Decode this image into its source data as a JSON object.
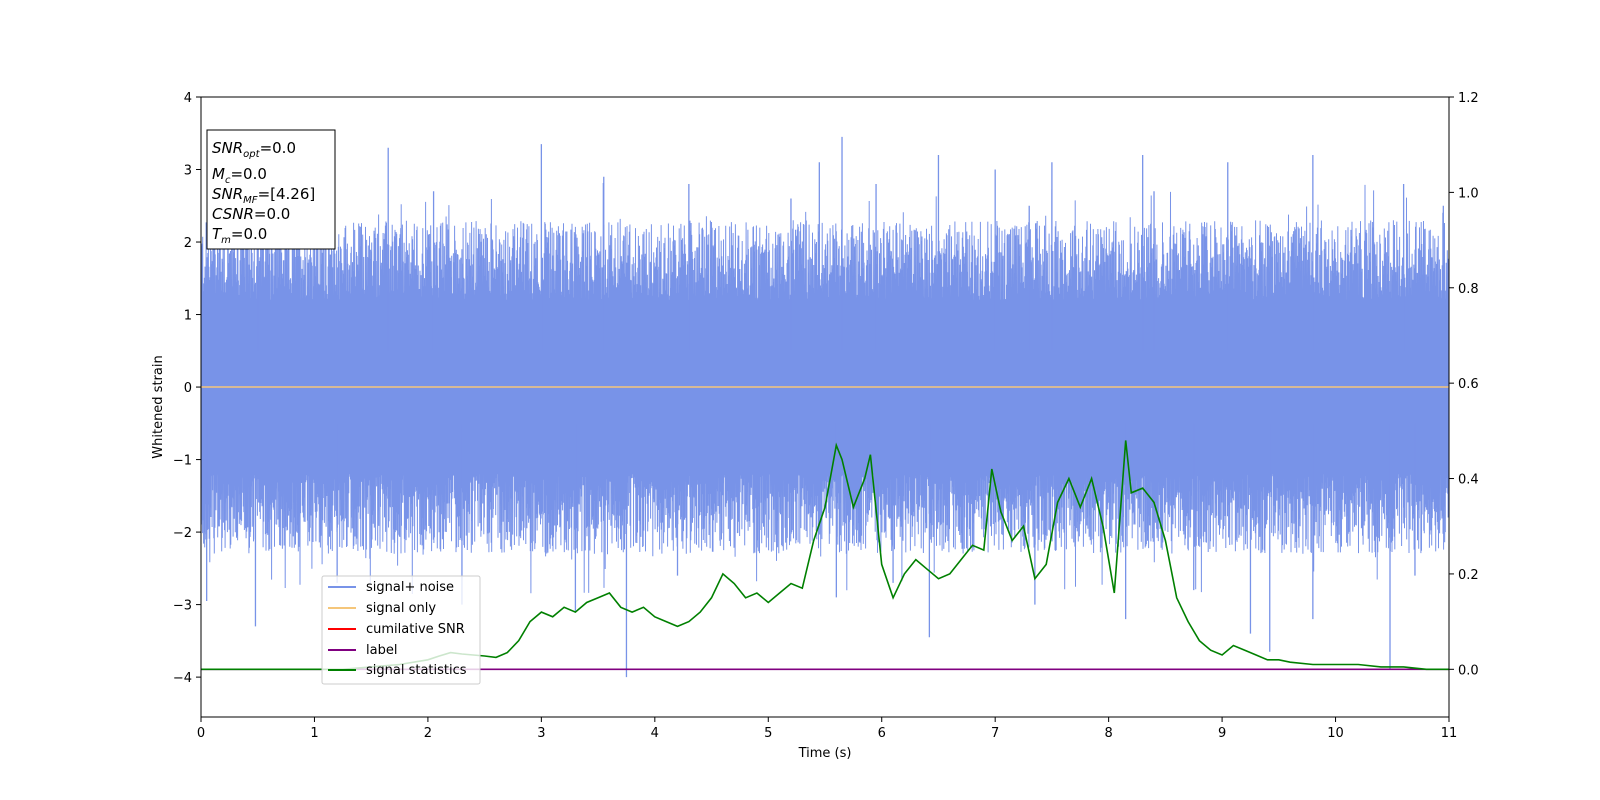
{
  "chart_data": {
    "type": "line",
    "xlabel": "Time (s)",
    "ylabel": "Whitened strain",
    "xlim": [
      0,
      11
    ],
    "ylim": [
      -4.55,
      4.0
    ],
    "y2lim": [
      -0.1,
      1.2
    ],
    "xticks": [
      "0",
      "1",
      "2",
      "3",
      "4",
      "5",
      "6",
      "7",
      "8",
      "9",
      "10",
      "11"
    ],
    "yticks": [
      "4",
      "3",
      "2",
      "1",
      "0",
      "−1",
      "−2",
      "−3",
      "−4"
    ],
    "y2ticks": [
      "1.2",
      "1.0",
      "0.8",
      "0.6",
      "0.4",
      "0.2",
      "0.0"
    ],
    "grid": false,
    "legend_location": "lower-left",
    "legend": [
      "signal+ noise",
      "signal only",
      "cumilative SNR",
      "label",
      "signal statistics"
    ],
    "colors": {
      "signal_noise": "#7893e8",
      "signal_only": "#f5c67a",
      "cumulative_snr": "#ff0000",
      "label": "#800080",
      "signal_statistics": "#008000"
    },
    "series": [
      {
        "name": "signal+ noise",
        "axis": "left",
        "description_range": [
          -4.0,
          3.45
        ],
        "spikes_up": [
          [
            0.12,
            2.4
          ],
          [
            0.5,
            2.6
          ],
          [
            1.1,
            3.1
          ],
          [
            1.65,
            3.3
          ],
          [
            2.05,
            2.7
          ],
          [
            3.0,
            3.35
          ],
          [
            3.55,
            2.9
          ],
          [
            4.3,
            2.8
          ],
          [
            5.2,
            2.6
          ],
          [
            5.45,
            3.1
          ],
          [
            5.65,
            3.45
          ],
          [
            5.95,
            2.8
          ],
          [
            6.5,
            3.2
          ],
          [
            7.0,
            3.0
          ],
          [
            7.3,
            2.5
          ],
          [
            7.5,
            3.1
          ],
          [
            8.3,
            3.2
          ],
          [
            8.4,
            2.7
          ],
          [
            9.05,
            3.1
          ],
          [
            9.8,
            3.2
          ],
          [
            10.6,
            2.8
          ],
          [
            10.95,
            2.5
          ]
        ],
        "spikes_down": [
          [
            0.05,
            -2.95
          ],
          [
            0.48,
            -3.3
          ],
          [
            1.2,
            -2.7
          ],
          [
            2.3,
            -3.0
          ],
          [
            3.3,
            -3.1
          ],
          [
            3.75,
            -4.0
          ],
          [
            4.2,
            -2.6
          ],
          [
            5.6,
            -2.9
          ],
          [
            6.1,
            -2.7
          ],
          [
            6.42,
            -3.45
          ],
          [
            7.35,
            -3.0
          ],
          [
            8.15,
            -3.2
          ],
          [
            8.75,
            -2.8
          ],
          [
            9.25,
            -3.4
          ],
          [
            9.42,
            -3.65
          ],
          [
            9.8,
            -3.2
          ],
          [
            10.48,
            -3.9
          ],
          [
            10.7,
            -2.6
          ]
        ]
      },
      {
        "name": "signal only",
        "axis": "left",
        "x": [
          0,
          11
        ],
        "y": [
          0,
          0
        ]
      },
      {
        "name": "label",
        "axis": "right",
        "x": [
          0,
          11
        ],
        "y": [
          0.0,
          0.0
        ]
      },
      {
        "name": "signal statistics",
        "axis": "right",
        "x": [
          0,
          0.25,
          0.5,
          0.75,
          1.0,
          1.25,
          1.5,
          1.75,
          2.0,
          2.1,
          2.2,
          2.3,
          2.4,
          2.5,
          2.6,
          2.7,
          2.8,
          2.9,
          3.0,
          3.1,
          3.2,
          3.3,
          3.4,
          3.5,
          3.6,
          3.7,
          3.8,
          3.9,
          4.0,
          4.1,
          4.2,
          4.3,
          4.4,
          4.5,
          4.6,
          4.7,
          4.8,
          4.9,
          5.0,
          5.1,
          5.2,
          5.3,
          5.4,
          5.5,
          5.6,
          5.65,
          5.75,
          5.85,
          5.9,
          6.0,
          6.1,
          6.2,
          6.3,
          6.4,
          6.5,
          6.6,
          6.7,
          6.8,
          6.9,
          6.97,
          7.05,
          7.15,
          7.25,
          7.35,
          7.45,
          7.55,
          7.65,
          7.75,
          7.85,
          7.95,
          8.05,
          8.15,
          8.2,
          8.3,
          8.4,
          8.5,
          8.6,
          8.7,
          8.8,
          8.9,
          9.0,
          9.1,
          9.2,
          9.3,
          9.4,
          9.5,
          9.6,
          9.8,
          10.0,
          10.2,
          10.4,
          10.6,
          10.8,
          11.0
        ],
        "y": [
          0.0,
          0.0,
          0.0,
          0.0,
          0.0,
          0.0,
          0.005,
          0.01,
          0.02,
          0.028,
          0.035,
          0.032,
          0.03,
          0.028,
          0.025,
          0.035,
          0.06,
          0.1,
          0.12,
          0.11,
          0.13,
          0.12,
          0.14,
          0.15,
          0.16,
          0.13,
          0.12,
          0.13,
          0.11,
          0.1,
          0.09,
          0.1,
          0.12,
          0.15,
          0.2,
          0.18,
          0.15,
          0.16,
          0.14,
          0.16,
          0.18,
          0.17,
          0.27,
          0.34,
          0.47,
          0.44,
          0.34,
          0.4,
          0.45,
          0.22,
          0.15,
          0.2,
          0.23,
          0.21,
          0.19,
          0.2,
          0.23,
          0.26,
          0.25,
          0.42,
          0.33,
          0.27,
          0.3,
          0.19,
          0.22,
          0.35,
          0.4,
          0.34,
          0.4,
          0.3,
          0.16,
          0.48,
          0.37,
          0.38,
          0.35,
          0.27,
          0.15,
          0.1,
          0.06,
          0.04,
          0.03,
          0.05,
          0.04,
          0.03,
          0.02,
          0.02,
          0.015,
          0.01,
          0.01,
          0.01,
          0.005,
          0.005,
          0.0,
          0.0
        ]
      }
    ],
    "annotations": {
      "snr_opt": "=0.0",
      "mc": "=0.0",
      "snr_mf": "=[4.26]",
      "csnr": "=0.0",
      "tm": "=0.0"
    }
  }
}
